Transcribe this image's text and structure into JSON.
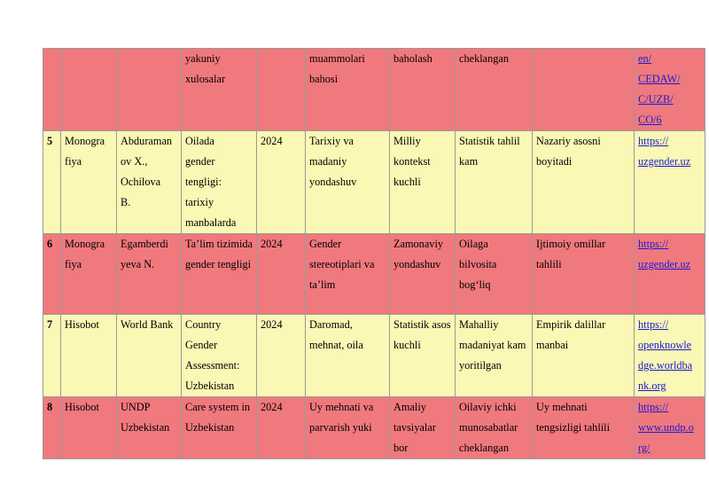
{
  "colors": {
    "row_red": "#f0797d",
    "row_yellow": "#fbf7b4",
    "link": "#1a1ad6"
  },
  "rows": [
    {
      "num": "",
      "type": "",
      "author": "",
      "title": "yakuniy xulosalar",
      "year": "",
      "approach": "muammolari bahosi",
      "strength": "baholash",
      "weakness": "cheklangan",
      "contribution": "",
      "link": [
        "en/",
        "CEDAW/",
        "C/UZB/",
        "CO/6"
      ]
    },
    {
      "num": "5",
      "type": "Monografiya",
      "author": "Abduramanov X., Ochilova B.",
      "title": "Oilada gender tengligi: tarixiy manbalarda",
      "year": "2024",
      "approach": "Tarixiy va madaniy yondashuv",
      "strength": "Milliy kontekst kuchli",
      "weakness": "Statistik tahlil kam",
      "contribution": "Nazariy asosni boyitadi",
      "link": [
        "https://",
        "uzgender.uz"
      ]
    },
    {
      "num": "6",
      "type": "Monografiya",
      "author": "Egamberdiyeva N.",
      "title": "Ta’lim tizimida gender tengligi",
      "year": "2024",
      "approach": "Gender stereotiplari va ta’lim",
      "strength": "Zamonaviy yondashuv",
      "weakness": "Oilaga bilvosita bog‘liq",
      "contribution": "Ijtimoiy omillar tahlili",
      "link": [
        "https://",
        "uzgender.uz"
      ]
    },
    {
      "num": "7",
      "type": "Hisobot",
      "author": "World Bank",
      "title": "Country Gender Assessment: Uzbekistan",
      "year": "2024",
      "approach": "Daromad, mehnat, oila",
      "strength": "Statistik asos kuchli",
      "weakness": "Mahalliy madaniyat kam yoritilgan",
      "contribution": "Empirik dalillar manbai",
      "link": [
        "https://",
        "openknowle",
        "dge.worldba",
        "nk.org"
      ]
    },
    {
      "num": "8",
      "type": "Hisobot",
      "author": "UNDP Uzbekistan",
      "title": "Care system in Uzbekistan",
      "year": "2024",
      "approach": "Uy mehnati va parvarish yuki",
      "strength": "Amaliy tavsiyalar bor",
      "weakness": "Oilaviy ichki munosabatlar cheklangan",
      "contribution": "Uy mehnati tengsizligi tahlili",
      "link": [
        "https://",
        "www.undp.o",
        "rg/"
      ]
    }
  ]
}
